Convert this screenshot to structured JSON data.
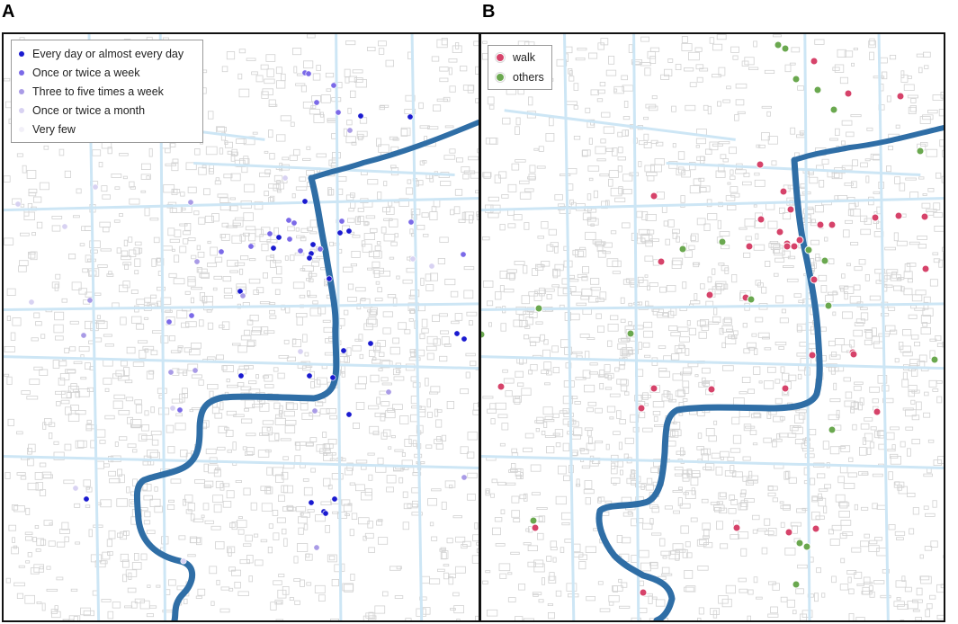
{
  "panels": {
    "a": {
      "letter": "A",
      "legend": [
        {
          "label": "Every day or almost every day",
          "color": "#1a1ad0"
        },
        {
          "label": "Once or twice a week",
          "color": "#7b6ae8"
        },
        {
          "label": "Three to five times a week",
          "color": "#a99be6"
        },
        {
          "label": "Once or twice a month",
          "color": "#d8d2f2"
        },
        {
          "label": "Very few",
          "color": "#f2f0f8"
        }
      ]
    },
    "b": {
      "letter": "B",
      "legend": [
        {
          "label": "walk",
          "color": "#d6436a"
        },
        {
          "label": "others",
          "color": "#6aa84f"
        }
      ]
    }
  },
  "colors": {
    "river": "#2f6ea6",
    "roads": "#cde6f5",
    "buildings": "#d2d2d2",
    "frame": "#111111"
  }
}
